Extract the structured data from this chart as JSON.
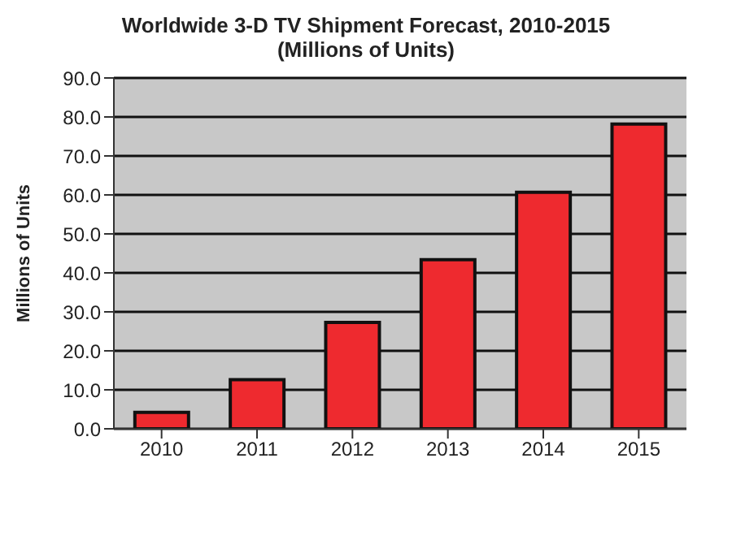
{
  "chart_data": {
    "type": "bar",
    "title": "Worldwide 3-D TV Shipment Forecast, 2010-2015",
    "subtitle": "(Millions of Units)",
    "ylabel": "Millions of Units",
    "categories": [
      "2010",
      "2011",
      "2012",
      "2013",
      "2014",
      "2015"
    ],
    "values": [
      4.2,
      12.6,
      27.3,
      43.4,
      60.7,
      78.2
    ],
    "color": "#ee2a2f",
    "ylim": [
      0,
      90
    ],
    "yticks": [
      {
        "value": 0,
        "label": "0.0"
      },
      {
        "value": 10,
        "label": "10.0"
      },
      {
        "value": 20,
        "label": "20.0"
      },
      {
        "value": 30,
        "label": "30.0"
      },
      {
        "value": 40,
        "label": "40.0"
      },
      {
        "value": 50,
        "label": "50.0"
      },
      {
        "value": 60,
        "label": "60.0"
      },
      {
        "value": 70,
        "label": "70.0"
      },
      {
        "value": 80,
        "label": "80.0"
      },
      {
        "value": 90,
        "label": "90.0"
      }
    ],
    "grid": "y"
  }
}
